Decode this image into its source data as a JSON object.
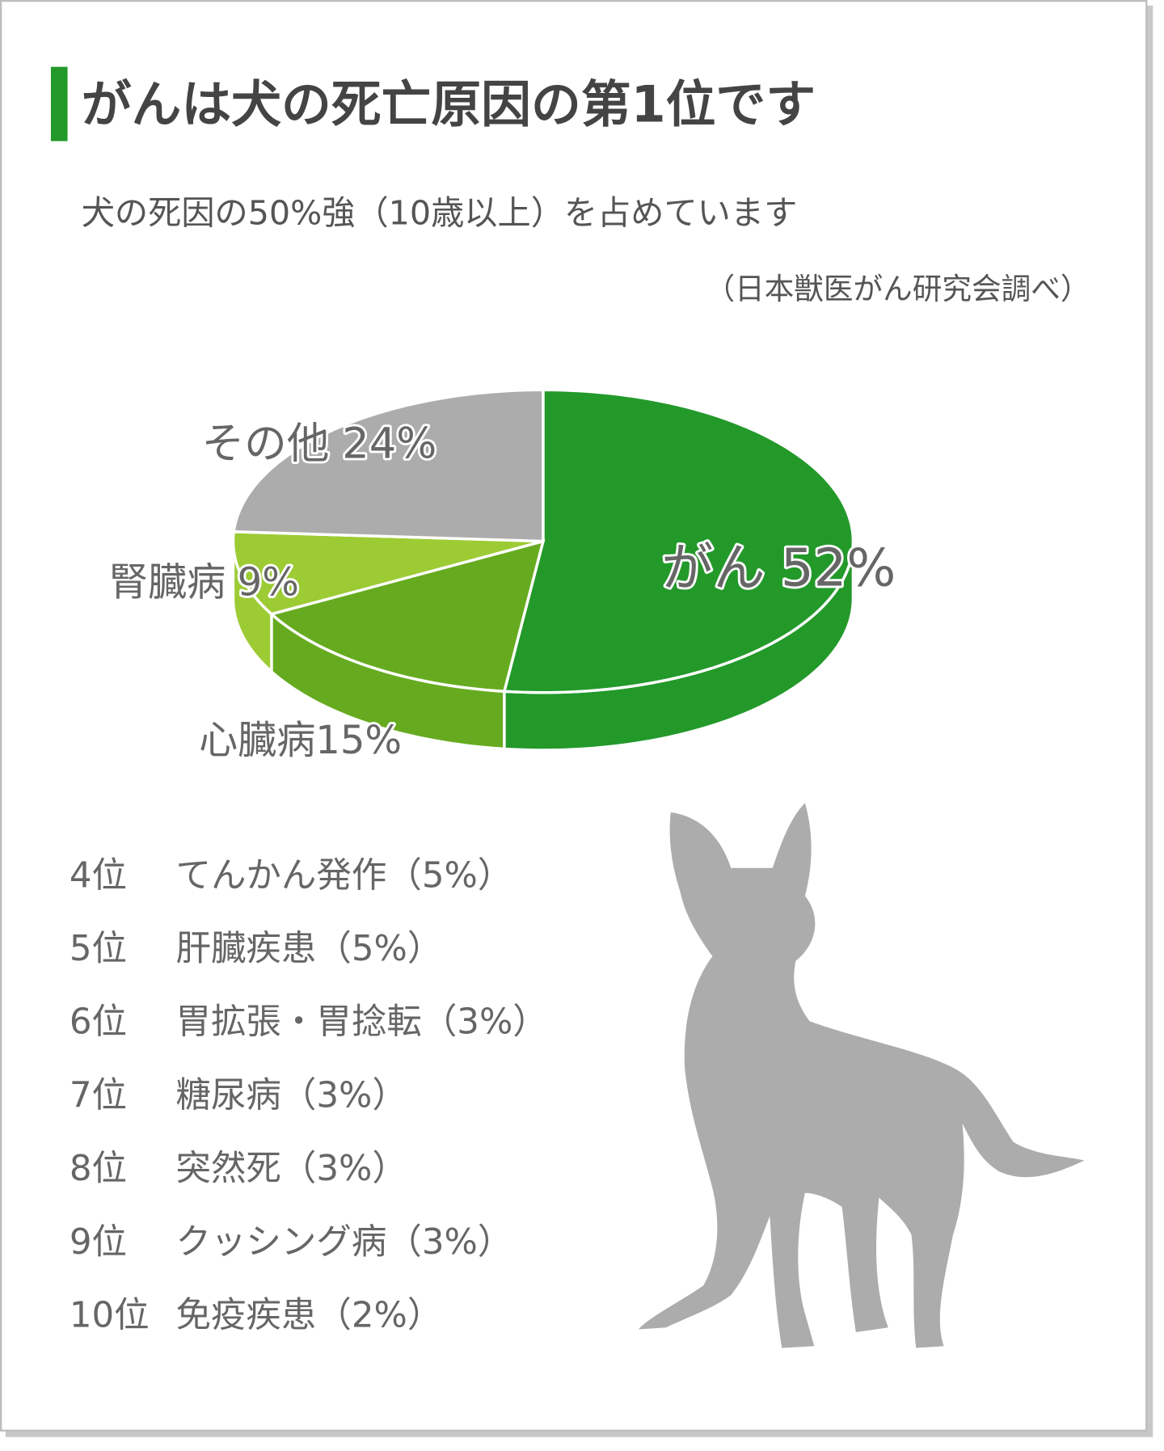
{
  "chart_data": {
    "type": "pie",
    "title": "がんは犬の死亡原因の第1位です",
    "subtitle": "犬の死因の50%強（10歳以上）を占めています",
    "source": "（日本獣医がん研究会調べ）",
    "categories": [
      "がん",
      "心臓病",
      "腎臓病",
      "その他"
    ],
    "values": [
      52,
      15,
      9,
      24
    ],
    "value_labels": [
      "52%",
      "15%",
      "9%",
      "24%"
    ],
    "colors": [
      "#23992a",
      "#66ab1f",
      "#9ccb34",
      "#acacac"
    ],
    "ranking": [
      {
        "rank": "4位",
        "label": "てんかん発作（5%）"
      },
      {
        "rank": "5位",
        "label": "肝臓疾患（5%）"
      },
      {
        "rank": "6位",
        "label": "胃拡張・胃捻転（3%）"
      },
      {
        "rank": "7位",
        "label": "糖尿病（3%）"
      },
      {
        "rank": "8位",
        "label": "突然死（3%）"
      },
      {
        "rank": "9位",
        "label": "クッシング病（3%）"
      },
      {
        "rank": "10位",
        "label": "免疫疾患（2%）"
      }
    ]
  }
}
